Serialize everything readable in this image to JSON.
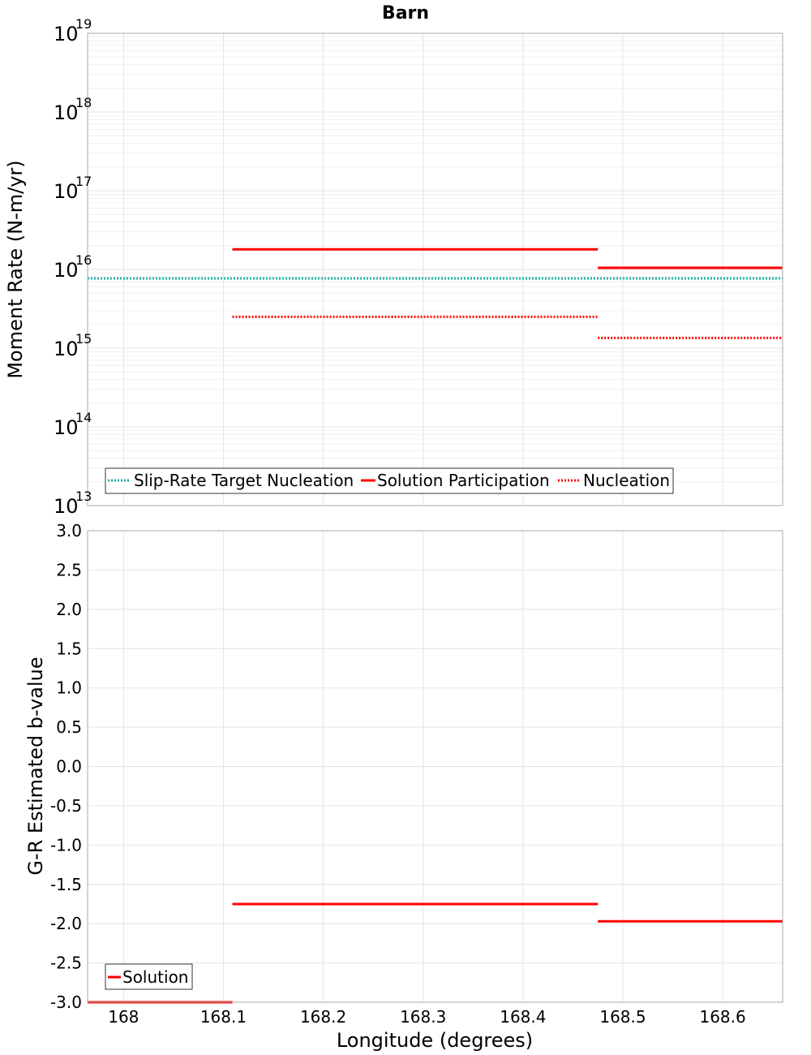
{
  "title": "Barn",
  "colors": {
    "target": "#20b2aa",
    "solution": "#ff0000",
    "grid": "#e4e4e4",
    "gridMinor": "#f0f0f0",
    "frame": "#aaaaaa"
  },
  "chart_data": [
    {
      "type": "line",
      "id": "moment",
      "ylabel": "Moment Rate (N-m/yr)",
      "yscale": "log",
      "ylim": [
        10000000000000.0,
        1e+19
      ],
      "xlim": [
        167.964,
        168.66
      ],
      "ytick_bases": [
        "10",
        "10",
        "10",
        "10",
        "10",
        "10",
        "10"
      ],
      "ytick_exps": [
        "13",
        "14",
        "15",
        "16",
        "17",
        "18",
        "19"
      ],
      "series": [
        {
          "name": "Slip-Rate Target Nucleation",
          "style": "dotted",
          "color": "target",
          "segments": [
            {
              "x": [
                167.964,
                168.66
              ],
              "y": 7700000000000000.0
            }
          ]
        },
        {
          "name": "Solution Participation",
          "style": "solid",
          "color": "solution",
          "segments": [
            {
              "x": [
                168.109,
                168.475
              ],
              "y": 1.8e+16
            },
            {
              "x": [
                168.475,
                168.66
              ],
              "y": 1.05e+16
            }
          ]
        },
        {
          "name": "Nucleation",
          "style": "dotted",
          "color": "solution",
          "segments": [
            {
              "x": [
                168.109,
                168.475
              ],
              "y": 2500000000000000.0
            },
            {
              "x": [
                168.475,
                168.66
              ],
              "y": 1350000000000000.0
            }
          ]
        }
      ],
      "legend": [
        "Slip-Rate Target Nucleation",
        "Solution Participation",
        "Nucleation"
      ]
    },
    {
      "type": "line",
      "id": "bvalue",
      "ylabel": "G-R Estimated b-value",
      "xlabel": "Longitude (degrees)",
      "ylim": [
        -3.0,
        3.0
      ],
      "xlim": [
        167.964,
        168.66
      ],
      "yticks": [
        "3.0",
        "2.5",
        "2.0",
        "1.5",
        "1.0",
        "0.5",
        "0.0",
        "-0.5",
        "-1.0",
        "-1.5",
        "-2.0",
        "-2.5",
        "-3.0"
      ],
      "xticks": [
        "168",
        "168.1",
        "168.2",
        "168.3",
        "168.4",
        "168.5",
        "168.6"
      ],
      "series": [
        {
          "name": "Solution",
          "style": "solid",
          "color": "solution",
          "segments": [
            {
              "x": [
                167.964,
                168.109
              ],
              "y": -3.0
            },
            {
              "x": [
                168.109,
                168.475
              ],
              "y": -1.75
            },
            {
              "x": [
                168.475,
                168.66
              ],
              "y": -1.97
            }
          ]
        }
      ],
      "legend": [
        "Solution"
      ]
    }
  ]
}
